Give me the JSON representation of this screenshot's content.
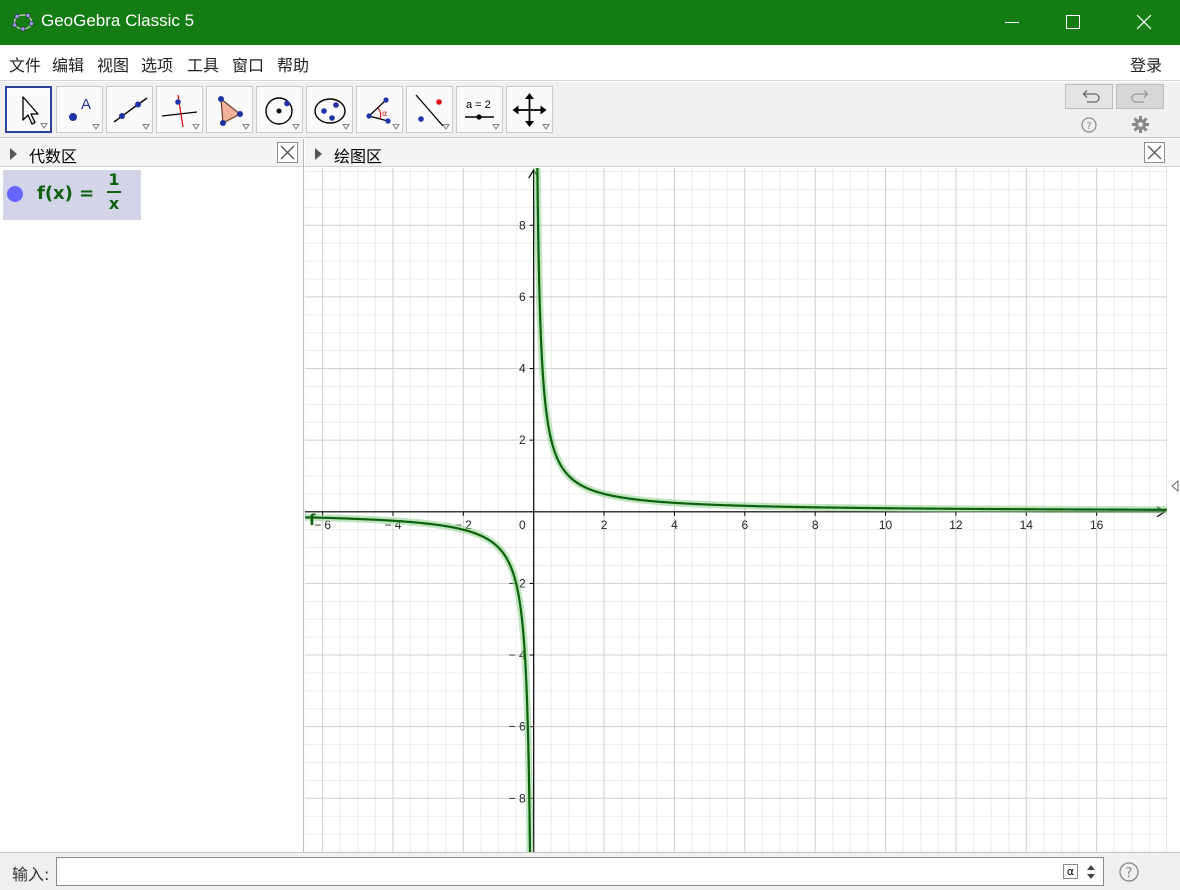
{
  "window": {
    "title": "GeoGebra Classic 5"
  },
  "menu": {
    "items": [
      "文件",
      "编辑",
      "视图",
      "选项",
      "工具",
      "窗口",
      "帮助"
    ],
    "login": "登录"
  },
  "toolbar": {
    "tools": [
      {
        "name": "move-tool",
        "label": "move",
        "selected": true
      },
      {
        "name": "point-tool",
        "label": "point A"
      },
      {
        "name": "line-tool",
        "label": "line"
      },
      {
        "name": "perpendicular-tool",
        "label": "perpendicular line"
      },
      {
        "name": "polygon-tool",
        "label": "polygon"
      },
      {
        "name": "circle-tool",
        "label": "circle"
      },
      {
        "name": "conic-tool",
        "label": "conic"
      },
      {
        "name": "angle-tool",
        "label": "angle α"
      },
      {
        "name": "reflect-tool",
        "label": "reflect"
      },
      {
        "name": "slider-tool",
        "label": "a = 2"
      },
      {
        "name": "move-graphics-tool",
        "label": "move graphics view"
      }
    ],
    "slider_label": "a = 2",
    "angle_symbol": "α"
  },
  "algebra": {
    "title": "代数区",
    "items": [
      {
        "lhs": "f(x) =",
        "numerator": "1",
        "denominator": "x",
        "color": "#0c620c",
        "dot_color": "#6666ff"
      }
    ]
  },
  "graphics": {
    "title": "绘图区",
    "function_label": "f",
    "x_ticks": [
      "− 6",
      "− 4",
      "− 2",
      "0",
      "2",
      "4",
      "6",
      "8",
      "10",
      "12",
      "14",
      "16"
    ],
    "y_ticks": [
      "8",
      "6",
      "4",
      "2",
      "− 2",
      "− 4",
      "− 6",
      "− 8"
    ]
  },
  "chart_data": {
    "type": "line",
    "title": "",
    "xlabel": "",
    "ylabel": "",
    "xlim": [
      -6.5,
      18
    ],
    "ylim": [
      -9.5,
      9.6
    ],
    "x_ticks": [
      -6,
      -4,
      -2,
      0,
      2,
      4,
      6,
      8,
      10,
      12,
      14,
      16
    ],
    "y_ticks": [
      -8,
      -6,
      -4,
      -2,
      2,
      4,
      6,
      8
    ],
    "grid": true,
    "series": [
      {
        "name": "f",
        "expression": "1/x",
        "color": "#0c620c",
        "sample_points": [
          [
            -6,
            -0.17
          ],
          [
            -4,
            -0.25
          ],
          [
            -2,
            -0.5
          ],
          [
            -1,
            -1
          ],
          [
            -0.5,
            -2
          ],
          [
            -0.25,
            -4
          ],
          [
            -0.125,
            -8
          ],
          [
            0.125,
            8
          ],
          [
            0.25,
            4
          ],
          [
            0.5,
            2
          ],
          [
            1,
            1
          ],
          [
            2,
            0.5
          ],
          [
            4,
            0.25
          ],
          [
            8,
            0.125
          ],
          [
            16,
            0.0625
          ]
        ]
      }
    ]
  },
  "input_bar": {
    "label": "输入:",
    "value": "",
    "alpha_symbol": "α"
  }
}
